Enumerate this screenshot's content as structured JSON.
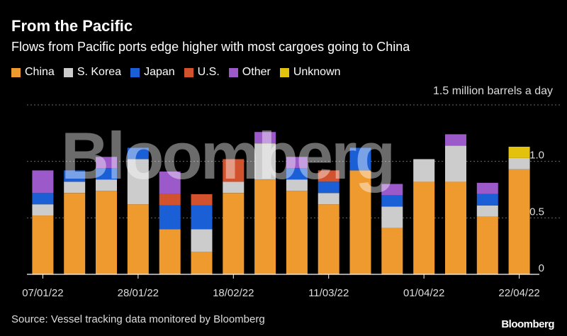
{
  "header": {
    "title": "From the Pacific",
    "subtitle": "Flows from Pacific ports edge higher with most cargoes going to China"
  },
  "unit_label": "1.5 million barrels a day",
  "source": "Source: Vessel tracking data monitored by Bloomberg",
  "brand": "Bloomberg",
  "watermark": "Bloomberg",
  "colors": {
    "China": "#ef9a2f",
    "S. Korea": "#cccccc",
    "Japan": "#1a5fd6",
    "U.S.": "#d2522e",
    "Other": "#9b59c9",
    "Unknown": "#e3c20e",
    "grid": "#6a6a6a",
    "axis": "#ffffff"
  },
  "chart_data": {
    "type": "bar",
    "stacked": true,
    "title": "From the Pacific",
    "subtitle": "Flows from Pacific ports edge higher with most cargoes going to China",
    "ylim": [
      0,
      1.5
    ],
    "yticks": [
      0,
      0.5,
      1.0
    ],
    "ytick_labels": [
      "0",
      "0.5",
      "1.0"
    ],
    "x_tick_labels": [
      {
        "index": 0,
        "label": "07/01/22"
      },
      {
        "index": 3,
        "label": "28/01/22"
      },
      {
        "index": 6,
        "label": "18/02/22"
      },
      {
        "index": 9,
        "label": "11/03/22"
      },
      {
        "index": 12,
        "label": "01/04/22"
      },
      {
        "index": 15,
        "label": "22/04/22"
      }
    ],
    "categories": [
      "07/01/22",
      "14/01/22",
      "21/01/22",
      "28/01/22",
      "04/02/22",
      "11/02/22",
      "18/02/22",
      "25/02/22",
      "04/03/22",
      "11/03/22",
      "18/03/22",
      "25/03/22",
      "01/04/22",
      "08/04/22",
      "15/04/22",
      "22/04/22"
    ],
    "series": [
      {
        "name": "China",
        "values": [
          0.52,
          0.72,
          0.74,
          0.62,
          0.4,
          0.2,
          0.72,
          0.84,
          0.74,
          0.62,
          0.92,
          0.41,
          0.82,
          0.82,
          0.51,
          0.93
        ]
      },
      {
        "name": "S. Korea",
        "values": [
          0.1,
          0.1,
          0.1,
          0.4,
          0.0,
          0.2,
          0.1,
          0.32,
          0.1,
          0.1,
          0.0,
          0.19,
          0.2,
          0.32,
          0.1,
          0.1
        ]
      },
      {
        "name": "Japan",
        "values": [
          0.1,
          0.1,
          0.1,
          0.1,
          0.21,
          0.21,
          0.0,
          0.0,
          0.1,
          0.1,
          0.2,
          0.1,
          0.0,
          0.0,
          0.1,
          0.0
        ]
      },
      {
        "name": "U.S.",
        "values": [
          0.0,
          0.0,
          0.0,
          0.0,
          0.1,
          0.1,
          0.2,
          0.0,
          0.0,
          0.1,
          0.0,
          0.0,
          0.0,
          0.0,
          0.0,
          0.0
        ]
      },
      {
        "name": "Other",
        "values": [
          0.2,
          0.0,
          0.1,
          0.0,
          0.2,
          0.0,
          0.0,
          0.1,
          0.1,
          0.0,
          0.0,
          0.1,
          0.0,
          0.1,
          0.1,
          0.0
        ]
      },
      {
        "name": "Unknown",
        "values": [
          0.0,
          0.0,
          0.0,
          0.0,
          0.0,
          0.0,
          0.0,
          0.0,
          0.0,
          0.0,
          0.0,
          0.0,
          0.0,
          0.0,
          0.0,
          0.1
        ]
      }
    ],
    "legend": [
      "China",
      "S. Korea",
      "Japan",
      "U.S.",
      "Other",
      "Unknown"
    ],
    "legend_position": "top-left",
    "grid": true
  }
}
